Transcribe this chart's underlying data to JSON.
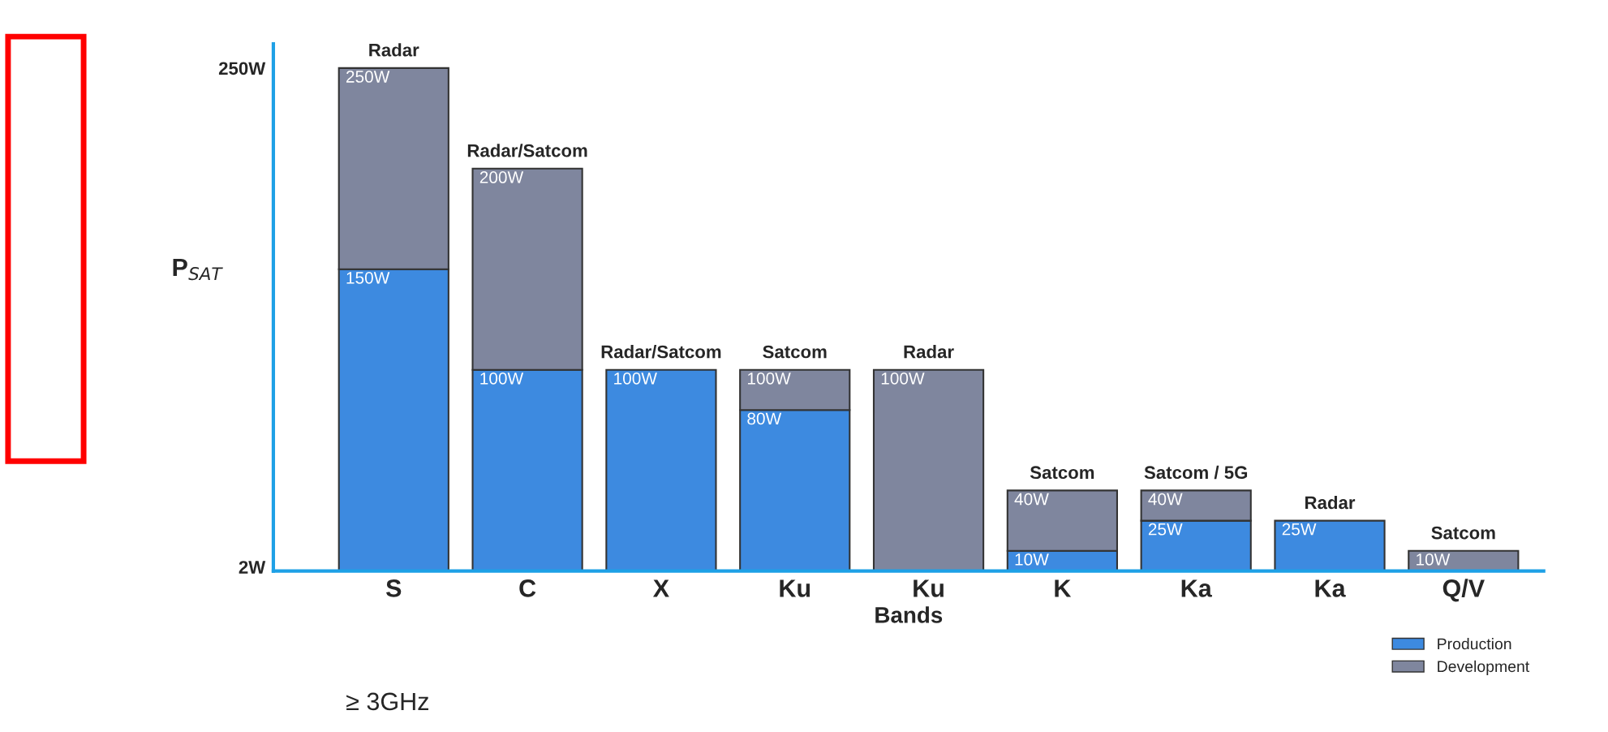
{
  "chart_data": {
    "type": "bar",
    "stacked": true,
    "xlabel": "Bands",
    "ylabel": "P$_{SAT}$",
    "categories": [
      "S",
      "C",
      "X",
      "Ku",
      "Ku",
      "K",
      "Ka",
      "Ka",
      "Q/V"
    ],
    "series": [
      {
        "name": "Production",
        "color": "#3d8ae0",
        "values": [
          150,
          100,
          100,
          80,
          null,
          10,
          25,
          25,
          null
        ],
        "value_labels": [
          "150W",
          "100W",
          null,
          "80W",
          null,
          "10W",
          "25W",
          null,
          null
        ]
      },
      {
        "name": "Development",
        "color": "#7f869e",
        "values": [
          100,
          100,
          null,
          20,
          100,
          30,
          15,
          null,
          10
        ]
      }
    ],
    "totals": [
      "250W",
      "200W",
      "100W",
      "100W",
      "100W",
      "40W",
      "40W",
      "25W",
      "10W"
    ],
    "ylim": [
      0,
      262
    ],
    "yticks": [
      {
        "value": 2,
        "label": "2W"
      },
      {
        "value": 250,
        "label": "250W"
      }
    ],
    "grid": false,
    "legend": "bottom right",
    "annotations": [
      "Radar",
      "Radar/Satcom",
      "Radar/Satcom",
      "Satcom",
      "Radar",
      "Satcom",
      "Satcom / 5G",
      "Radar",
      "Satcom",
      "≥ 3GHz"
    ]
  }
}
